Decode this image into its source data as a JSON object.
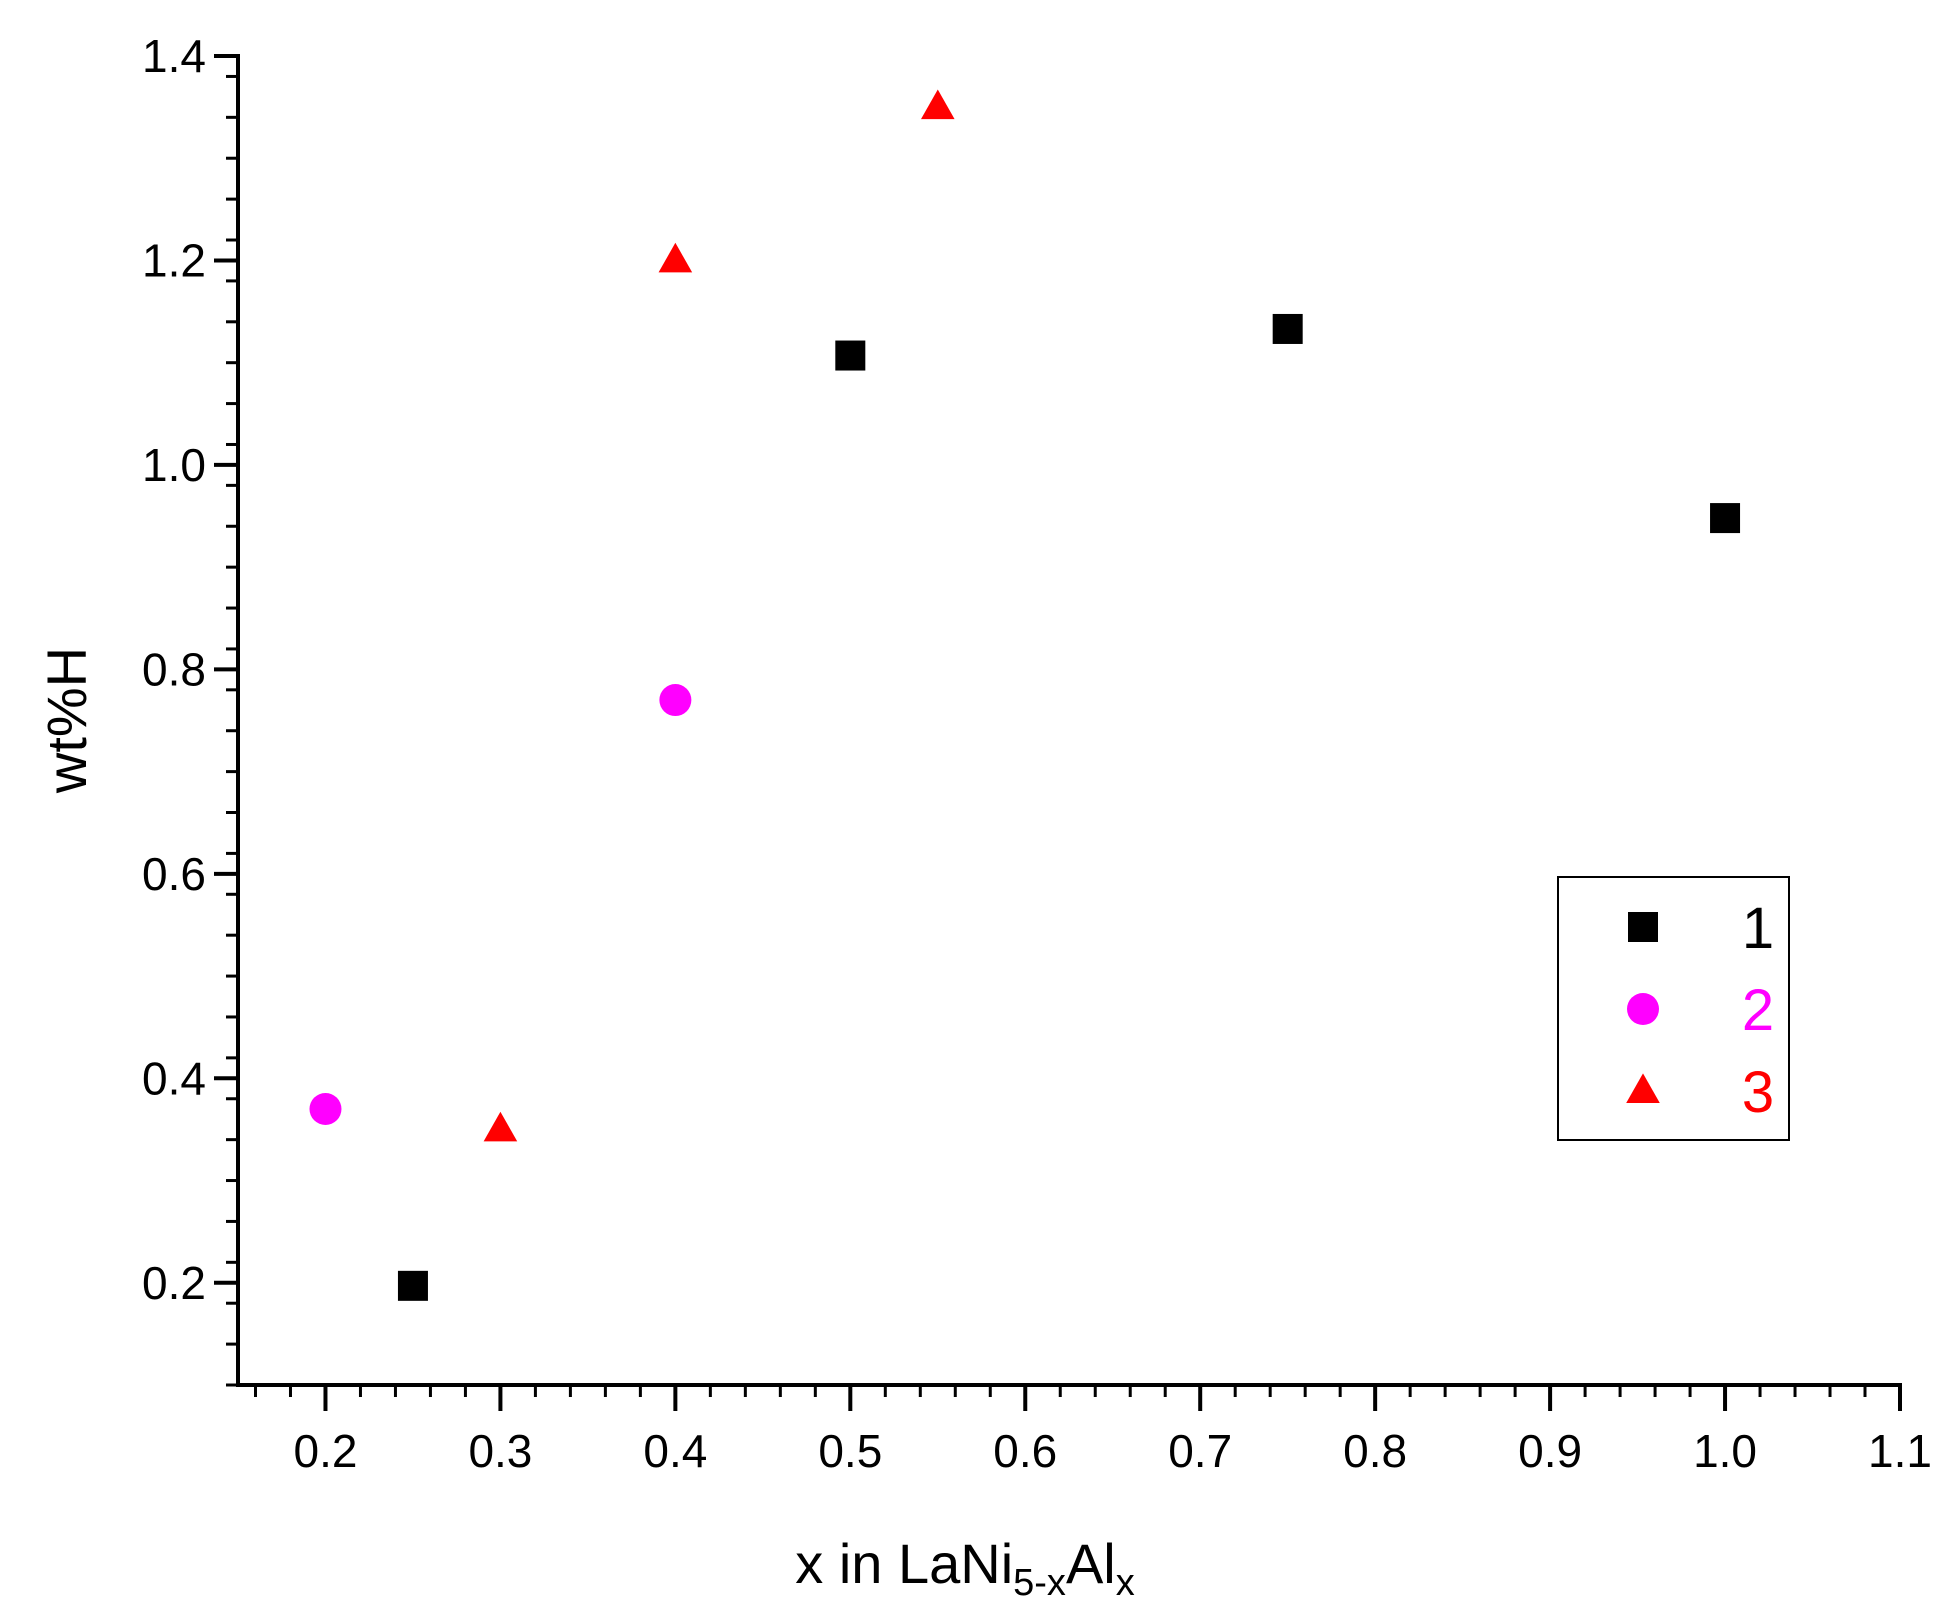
{
  "chart_data": {
    "type": "scatter",
    "title": "",
    "xlabel": {
      "main": "x in LaNi",
      "sub1": "5-x",
      "mid": "Al",
      "sub2": "x"
    },
    "ylabel": "wt%H",
    "xlim": [
      0.15,
      1.1
    ],
    "ylim": [
      0.1,
      1.4
    ],
    "xticks": [
      0.2,
      0.3,
      0.4,
      0.5,
      0.6,
      0.7,
      0.8,
      0.9,
      1.0,
      1.1
    ],
    "xtick_labels": [
      "0.2",
      "0.3",
      "0.4",
      "0.5",
      "0.6",
      "0.7",
      "0.8",
      "0.9",
      "1.0",
      "1.1"
    ],
    "yticks": [
      0.2,
      0.4,
      0.6,
      0.8,
      1.0,
      1.2,
      1.4
    ],
    "ytick_labels": [
      "0.2",
      "0.4",
      "0.6",
      "0.8",
      "1.0",
      "1.2",
      "1.4"
    ],
    "x_minor_step": 0.02,
    "y_minor_step": 0.04,
    "grid": false,
    "legend_position": "right",
    "series": [
      {
        "name": "1",
        "marker": "square",
        "color": "#000000",
        "points": [
          {
            "x": 0.25,
            "y": 0.197
          },
          {
            "x": 0.5,
            "y": 1.107
          },
          {
            "x": 0.75,
            "y": 1.133
          },
          {
            "x": 1.0,
            "y": 0.948
          }
        ]
      },
      {
        "name": "2",
        "marker": "circle",
        "color": "#ff00ff",
        "points": [
          {
            "x": 0.2,
            "y": 0.37
          },
          {
            "x": 0.4,
            "y": 0.77
          }
        ]
      },
      {
        "name": "3",
        "marker": "triangle",
        "color": "#ff0000",
        "points": [
          {
            "x": 0.3,
            "y": 0.35
          },
          {
            "x": 0.4,
            "y": 1.2
          },
          {
            "x": 0.55,
            "y": 1.35
          }
        ]
      }
    ]
  }
}
